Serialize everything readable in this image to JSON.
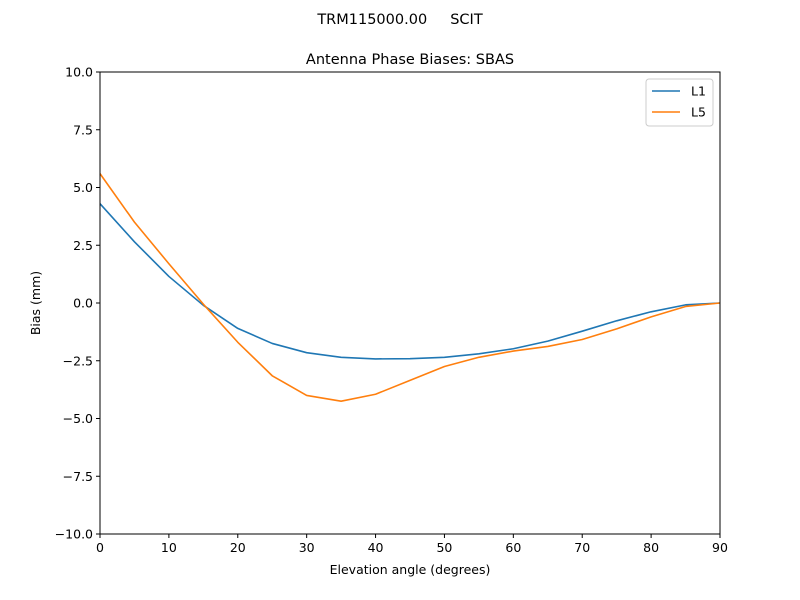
{
  "chart_data": {
    "type": "line",
    "suptitle": "TRM115000.00     SCIT",
    "title": "Antenna Phase Biases: SBAS",
    "xlabel": "Elevation angle (degrees)",
    "ylabel": "Bias (mm)",
    "xlim": [
      0,
      90
    ],
    "ylim": [
      -10,
      10
    ],
    "xticks": [
      0,
      10,
      20,
      30,
      40,
      50,
      60,
      70,
      80,
      90
    ],
    "yticks": [
      -10,
      -7.5,
      -5,
      -2.5,
      0,
      2.5,
      5,
      7.5,
      10
    ],
    "xtick_labels": [
      "0",
      "10",
      "20",
      "30",
      "40",
      "50",
      "60",
      "70",
      "80",
      "90"
    ],
    "ytick_labels": [
      "−10.0",
      "−7.5",
      "−5.0",
      "−2.5",
      "0.0",
      "2.5",
      "5.0",
      "7.5",
      "10.0"
    ],
    "grid": false,
    "legend_position": "top-right",
    "x": [
      0,
      5,
      10,
      15,
      20,
      25,
      30,
      35,
      40,
      45,
      50,
      55,
      60,
      65,
      70,
      75,
      80,
      85,
      90
    ],
    "series": [
      {
        "name": "L1",
        "color": "#1f77b4",
        "values": [
          4.3,
          2.65,
          1.15,
          -0.1,
          -1.1,
          -1.75,
          -2.15,
          -2.35,
          -2.42,
          -2.41,
          -2.35,
          -2.2,
          -1.98,
          -1.65,
          -1.22,
          -0.77,
          -0.38,
          -0.08,
          0.0
        ]
      },
      {
        "name": "L5",
        "color": "#ff7f0e",
        "values": [
          5.6,
          3.5,
          1.7,
          -0.05,
          -1.7,
          -3.15,
          -4.0,
          -4.25,
          -3.95,
          -3.35,
          -2.75,
          -2.35,
          -2.08,
          -1.88,
          -1.58,
          -1.12,
          -0.6,
          -0.15,
          0.0
        ]
      }
    ]
  }
}
